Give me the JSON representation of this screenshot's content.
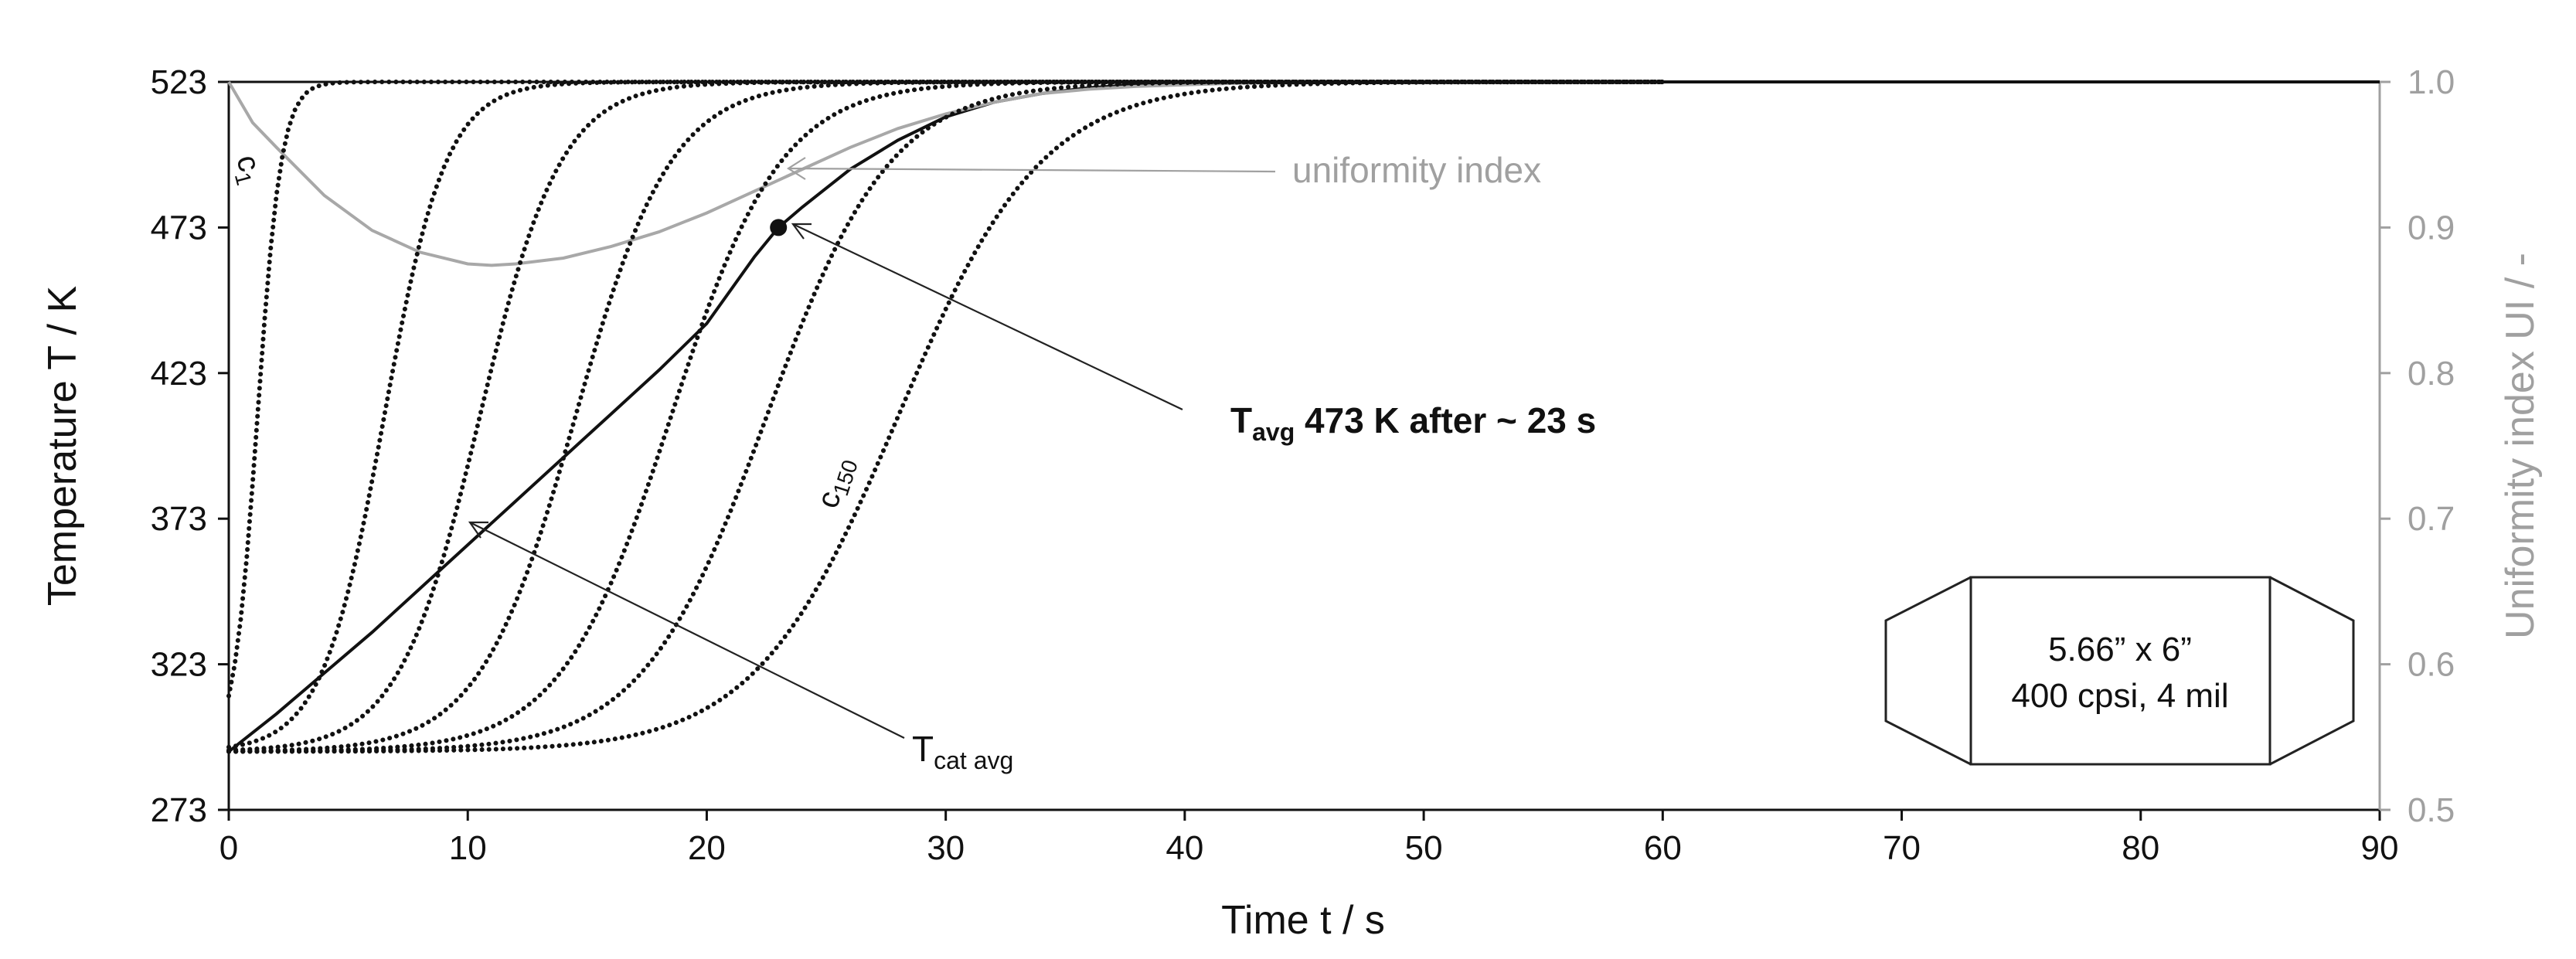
{
  "chart_data": {
    "type": "line",
    "xlabel": "Time t  / s",
    "ylabel": "Temperature T / K",
    "y2label": "Uniformity index UI / -",
    "xlim": [
      0,
      90
    ],
    "ylim": [
      273,
      523
    ],
    "y2lim": [
      0.5,
      1.0
    ],
    "x_ticks": [
      "0",
      "10",
      "20",
      "30",
      "40",
      "50",
      "60",
      "70",
      "80",
      "90"
    ],
    "y_ticks": [
      "273",
      "323",
      "373",
      "423",
      "473",
      "523"
    ],
    "y2_ticks": [
      "0.5",
      "0.6",
      "0.7",
      "0.8",
      "0.9",
      "1.0"
    ],
    "grid": false,
    "series": [
      {
        "style": "solid-black",
        "axis": "left",
        "x": [
          0,
          2,
          4,
          6,
          8,
          10,
          12,
          14,
          16,
          18,
          20,
          22,
          23,
          24,
          26,
          28,
          30,
          32,
          34,
          36,
          38,
          40,
          42,
          45,
          50,
          60,
          90
        ],
        "y": [
          293,
          306,
          320,
          334,
          349,
          364,
          379,
          394,
          409,
          424,
          440,
          463,
          473,
          480,
          493,
          503,
          511,
          516,
          519,
          521,
          522,
          522.6,
          523,
          523,
          523,
          523,
          523
        ]
      },
      {
        "style": "solid-gray",
        "axis": "right",
        "x": [
          0,
          1,
          2,
          4,
          6,
          8,
          10,
          11,
          12,
          14,
          16,
          18,
          20,
          22,
          24,
          26,
          28,
          30,
          32,
          34,
          36,
          38,
          40,
          42,
          45,
          50,
          55,
          60
        ],
        "y": [
          1.0,
          0.972,
          0.955,
          0.922,
          0.898,
          0.883,
          0.875,
          0.874,
          0.875,
          0.879,
          0.887,
          0.897,
          0.91,
          0.925,
          0.94,
          0.955,
          0.968,
          0.978,
          0.986,
          0.992,
          0.995,
          0.997,
          0.998,
          0.999,
          1.0,
          1.0,
          1.0,
          1.0
        ]
      },
      {
        "style": "dotted",
        "axis": "left",
        "profile_center_s": 1.2,
        "profile_width_s": 0.5,
        "y_min": 293,
        "y_max": 523
      },
      {
        "style": "dotted",
        "axis": "left",
        "profile_center_s": 6.5,
        "profile_width_s": 1.3,
        "y_min": 293,
        "y_max": 523
      },
      {
        "style": "dotted",
        "axis": "left",
        "profile_center_s": 10.5,
        "profile_width_s": 1.7,
        "y_min": 293,
        "y_max": 523
      },
      {
        "style": "dotted",
        "axis": "left",
        "profile_center_s": 14.5,
        "profile_width_s": 2.0,
        "y_min": 293,
        "y_max": 523
      },
      {
        "style": "dotted",
        "axis": "left",
        "profile_center_s": 18.5,
        "profile_width_s": 2.3,
        "y_min": 293,
        "y_max": 523
      },
      {
        "style": "dotted",
        "axis": "left",
        "profile_center_s": 22.5,
        "profile_width_s": 2.6,
        "y_min": 293,
        "y_max": 523
      },
      {
        "style": "dotted",
        "axis": "left",
        "profile_center_s": 28.0,
        "profile_width_s": 3.0,
        "y_min": 293,
        "y_max": 523
      }
    ],
    "marker": {
      "x": 23,
      "y": 473
    },
    "annotations": {
      "c1_main": "c",
      "c1_sub": "1",
      "c150_main": "c",
      "c150_sub": "150",
      "uniformity": "uniformity index",
      "tavg_main": "T",
      "tavg_sub": "avg",
      "tavg_rest": " 473 K after ~ 23 s",
      "tcat_main": "T",
      "tcat_sub": "cat avg"
    },
    "inset": {
      "line1": "5.66” x 6”",
      "line2": "400 cpsi, 4 mil"
    }
  }
}
